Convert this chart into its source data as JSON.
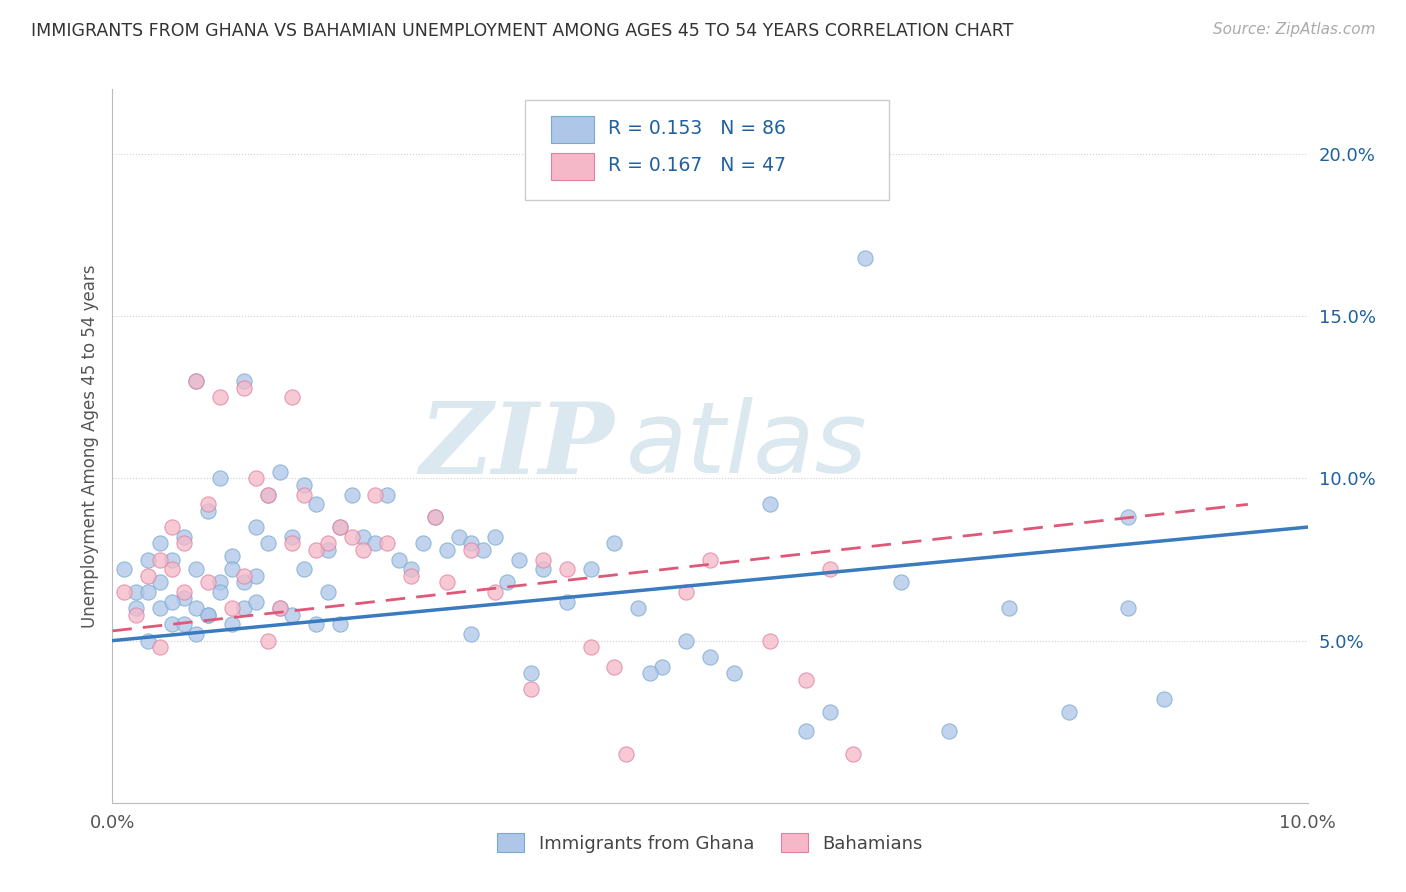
{
  "title": "IMMIGRANTS FROM GHANA VS BAHAMIAN UNEMPLOYMENT AMONG AGES 45 TO 54 YEARS CORRELATION CHART",
  "source": "Source: ZipAtlas.com",
  "ylabel": "Unemployment Among Ages 45 to 54 years",
  "xlim": [
    0.0,
    0.1
  ],
  "ylim": [
    0.0,
    0.22
  ],
  "xtick_vals": [
    0.0,
    0.02,
    0.04,
    0.06,
    0.08,
    0.1
  ],
  "xtick_labels": [
    "0.0%",
    "",
    "",
    "",
    "",
    "10.0%"
  ],
  "ytick_vals": [
    0.0,
    0.05,
    0.1,
    0.15,
    0.2
  ],
  "ytick_labels": [
    "",
    "5.0%",
    "10.0%",
    "15.0%",
    "20.0%"
  ],
  "series1_label": "Immigrants from Ghana",
  "series1_color": "#aec6e8",
  "series1_edge": "#7aaad0",
  "series1_R": "0.153",
  "series1_N": "86",
  "series2_label": "Bahamians",
  "series2_color": "#f5b8c8",
  "series2_edge": "#e080a0",
  "series2_R": "0.167",
  "series2_N": "47",
  "trendline1_color": "#3a7abf",
  "trendline2_color": "#e05878",
  "legend_text_color": "#2060a0",
  "background_color": "#ffffff",
  "grid_color": "#cccccc",
  "watermark_color": "#dce8f0",
  "title_color": "#333333",
  "source_color": "#aaaaaa",
  "tick_color": "#555555",
  "ylabel_color": "#555555",
  "scatter1_x": [
    0.002,
    0.003,
    0.003,
    0.004,
    0.004,
    0.005,
    0.005,
    0.006,
    0.006,
    0.007,
    0.007,
    0.007,
    0.008,
    0.008,
    0.009,
    0.009,
    0.01,
    0.01,
    0.011,
    0.011,
    0.012,
    0.012,
    0.013,
    0.013,
    0.014,
    0.014,
    0.015,
    0.015,
    0.016,
    0.016,
    0.017,
    0.017,
    0.018,
    0.018,
    0.019,
    0.019,
    0.02,
    0.021,
    0.022,
    0.023,
    0.024,
    0.025,
    0.026,
    0.027,
    0.028,
    0.029,
    0.03,
    0.031,
    0.032,
    0.033,
    0.034,
    0.035,
    0.036,
    0.038,
    0.04,
    0.042,
    0.044,
    0.046,
    0.048,
    0.05,
    0.052,
    0.055,
    0.058,
    0.06,
    0.063,
    0.066,
    0.07,
    0.075,
    0.08,
    0.085,
    0.088,
    0.001,
    0.002,
    0.003,
    0.004,
    0.005,
    0.006,
    0.007,
    0.008,
    0.009,
    0.01,
    0.011,
    0.012,
    0.03,
    0.045,
    0.085
  ],
  "scatter1_y": [
    0.065,
    0.05,
    0.075,
    0.06,
    0.08,
    0.055,
    0.075,
    0.063,
    0.082,
    0.052,
    0.13,
    0.072,
    0.058,
    0.09,
    0.068,
    0.1,
    0.055,
    0.076,
    0.13,
    0.06,
    0.085,
    0.062,
    0.08,
    0.095,
    0.06,
    0.102,
    0.058,
    0.082,
    0.072,
    0.098,
    0.055,
    0.092,
    0.065,
    0.078,
    0.055,
    0.085,
    0.095,
    0.082,
    0.08,
    0.095,
    0.075,
    0.072,
    0.08,
    0.088,
    0.078,
    0.082,
    0.08,
    0.078,
    0.082,
    0.068,
    0.075,
    0.04,
    0.072,
    0.062,
    0.072,
    0.08,
    0.06,
    0.042,
    0.05,
    0.045,
    0.04,
    0.092,
    0.022,
    0.028,
    0.168,
    0.068,
    0.022,
    0.06,
    0.028,
    0.06,
    0.032,
    0.072,
    0.06,
    0.065,
    0.068,
    0.062,
    0.055,
    0.06,
    0.058,
    0.065,
    0.072,
    0.068,
    0.07,
    0.052,
    0.04,
    0.088
  ],
  "scatter2_x": [
    0.001,
    0.002,
    0.003,
    0.004,
    0.004,
    0.005,
    0.005,
    0.006,
    0.006,
    0.007,
    0.008,
    0.008,
    0.009,
    0.01,
    0.011,
    0.011,
    0.012,
    0.013,
    0.013,
    0.014,
    0.015,
    0.015,
    0.016,
    0.017,
    0.018,
    0.019,
    0.02,
    0.021,
    0.022,
    0.023,
    0.025,
    0.027,
    0.028,
    0.03,
    0.032,
    0.035,
    0.036,
    0.038,
    0.04,
    0.042,
    0.043,
    0.048,
    0.05,
    0.055,
    0.058,
    0.06,
    0.062
  ],
  "scatter2_y": [
    0.065,
    0.058,
    0.07,
    0.048,
    0.075,
    0.072,
    0.085,
    0.08,
    0.065,
    0.13,
    0.092,
    0.068,
    0.125,
    0.06,
    0.128,
    0.07,
    0.1,
    0.095,
    0.05,
    0.06,
    0.125,
    0.08,
    0.095,
    0.078,
    0.08,
    0.085,
    0.082,
    0.078,
    0.095,
    0.08,
    0.07,
    0.088,
    0.068,
    0.078,
    0.065,
    0.035,
    0.075,
    0.072,
    0.048,
    0.042,
    0.015,
    0.065,
    0.075,
    0.05,
    0.038,
    0.072,
    0.015
  ],
  "trendline1_x": [
    0.0,
    0.1
  ],
  "trendline1_y": [
    0.05,
    0.085
  ],
  "trendline2_x": [
    0.0,
    0.095
  ],
  "trendline2_y": [
    0.053,
    0.092
  ]
}
